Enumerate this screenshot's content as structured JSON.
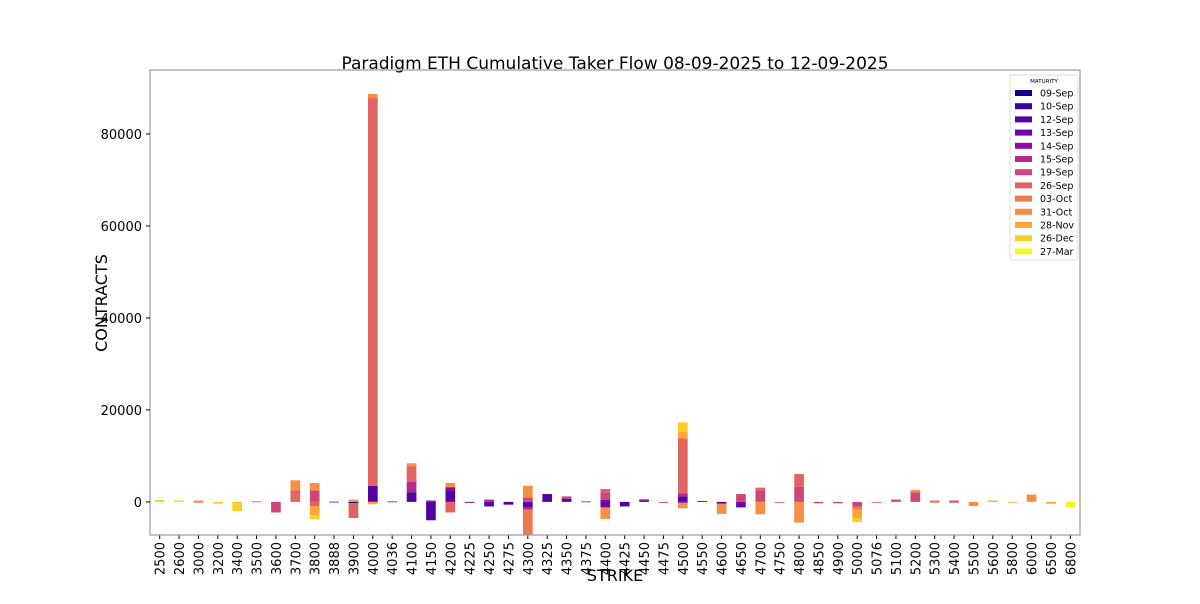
{
  "chart_data": {
    "type": "bar",
    "stacked": true,
    "title": "Paradigm ETH Cumulative Taker Flow 08-09-2025 to 12-09-2025",
    "xlabel": "STRIKE",
    "ylabel": "CONTRACTS",
    "ylim": [
      -7200,
      93900
    ],
    "yticks": [
      0,
      20000,
      40000,
      60000,
      80000
    ],
    "grid": false,
    "legend": {
      "title": "MATURITY",
      "placement": "top-right"
    },
    "series": [
      {
        "name": "09-Sep",
        "color": "#0d0887"
      },
      {
        "name": "10-Sep",
        "color": "#350498"
      },
      {
        "name": "12-Sep",
        "color": "#5402a3"
      },
      {
        "name": "13-Sep",
        "color": "#7000a8"
      },
      {
        "name": "14-Sep",
        "color": "#8b0aa5"
      },
      {
        "name": "15-Sep",
        "color": "#b12a90"
      },
      {
        "name": "19-Sep",
        "color": "#cc4778"
      },
      {
        "name": "26-Sep",
        "color": "#e16462"
      },
      {
        "name": "03-Oct",
        "color": "#ed7953"
      },
      {
        "name": "31-Oct",
        "color": "#f68f44"
      },
      {
        "name": "28-Nov",
        "color": "#fca636"
      },
      {
        "name": "26-Dec",
        "color": "#fcce25"
      },
      {
        "name": "27-Mar",
        "color": "#f0f921"
      }
    ],
    "bars": [
      {
        "strike": "2500",
        "values": {
          "26-Dec": 400
        }
      },
      {
        "strike": "2600",
        "values": {
          "26-Dec": 300
        }
      },
      {
        "strike": "3000",
        "values": {
          "31-Oct": 300,
          "26-Sep": -100
        }
      },
      {
        "strike": "3200",
        "values": {
          "26-Dec": -400
        }
      },
      {
        "strike": "3400",
        "values": {
          "28-Nov": -100,
          "26-Dec": -1900
        }
      },
      {
        "strike": "3500",
        "values": {
          "19-Sep": 100
        }
      },
      {
        "strike": "3600",
        "values": {
          "19-Sep": -2300
        }
      },
      {
        "strike": "3700",
        "values": {
          "26-Sep": 2500,
          "31-Oct": 2200
        }
      },
      {
        "strike": "3800",
        "values": {
          "19-Sep": 2500,
          "31-Oct": 1600,
          "26-Sep": -900,
          "28-Nov": -2000,
          "26-Dec": -900
        }
      },
      {
        "strike": "3888",
        "values": {
          "13-Sep": 50
        }
      },
      {
        "strike": "3900",
        "values": {
          "31-Oct": 500,
          "09-Sep": -300,
          "26-Sep": -3200
        }
      },
      {
        "strike": "4000",
        "values": {
          "12-Sep": 3500,
          "26-Sep": 84300,
          "31-Oct": 900,
          "28-Nov": -500
        }
      },
      {
        "strike": "4036",
        "values": {
          "14-Sep": 100
        }
      },
      {
        "strike": "4100",
        "values": {
          "12-Sep": 2100,
          "15-Sep": 2300,
          "26-Sep": 3300,
          "31-Oct": 700
        }
      },
      {
        "strike": "4150",
        "values": {
          "14-Sep": 300,
          "12-Sep": -4000
        }
      },
      {
        "strike": "4200",
        "values": {
          "12-Sep": 2500,
          "14-Sep": 700,
          "31-Oct": 900,
          "26-Sep": -2300
        }
      },
      {
        "strike": "4225",
        "values": {
          "12-Sep": -200
        }
      },
      {
        "strike": "4250",
        "values": {
          "15-Sep": 500,
          "12-Sep": -1000
        }
      },
      {
        "strike": "4275",
        "values": {
          "12-Sep": -600
        }
      },
      {
        "strike": "4300",
        "values": {
          "19-Sep": 1000,
          "31-Oct": 2500,
          "12-Sep": -1200,
          "15-Sep": -500,
          "03-Oct": -5500
        }
      },
      {
        "strike": "4325",
        "values": {
          "12-Sep": 1700
        }
      },
      {
        "strike": "4350",
        "values": {
          "12-Sep": 700,
          "19-Sep": 500
        }
      },
      {
        "strike": "4375",
        "values": {
          "14-Sep": 100
        }
      },
      {
        "strike": "4400",
        "values": {
          "12-Sep": 400,
          "19-Sep": 1700,
          "26-Sep": 700,
          "13-Sep": -1200,
          "31-Oct": -2500
        }
      },
      {
        "strike": "4425",
        "values": {
          "12-Sep": -1000
        }
      },
      {
        "strike": "4450",
        "values": {
          "12-Sep": 300,
          "19-Sep": 300
        }
      },
      {
        "strike": "4475",
        "values": {
          "19-Sep": -200
        }
      },
      {
        "strike": "4500",
        "values": {
          "12-Sep": 1200,
          "15-Sep": 700,
          "26-Sep": 11900,
          "28-Nov": 1400,
          "26-Dec": 2100,
          "13-Sep": -200,
          "31-Oct": -1200
        }
      },
      {
        "strike": "4550",
        "values": {
          "12-Sep": 200
        }
      },
      {
        "strike": "4600",
        "values": {
          "12-Sep": -400,
          "31-Oct": -2200
        }
      },
      {
        "strike": "4650",
        "values": {
          "19-Sep": 1700,
          "13-Sep": -1200
        }
      },
      {
        "strike": "4700",
        "values": {
          "19-Sep": 2500,
          "26-Sep": 600,
          "31-Oct": -2700
        }
      },
      {
        "strike": "4750",
        "values": {
          "26-Sep": -200
        }
      },
      {
        "strike": "4800",
        "values": {
          "19-Sep": 3300,
          "26-Sep": 2750,
          "31-Oct": -4500
        }
      },
      {
        "strike": "4850",
        "values": {
          "19-Sep": -300
        }
      },
      {
        "strike": "4900",
        "values": {
          "19-Sep": -300
        }
      },
      {
        "strike": "5000",
        "values": {
          "19-Sep": -1000,
          "03-Oct": -700,
          "28-Nov": -1800,
          "26-Dec": -900
        }
      },
      {
        "strike": "5076",
        "values": {
          "19-Sep": -100
        }
      },
      {
        "strike": "5100",
        "values": {
          "19-Sep": 500
        }
      },
      {
        "strike": "5200",
        "values": {
          "19-Sep": 2100,
          "31-Oct": 500
        }
      },
      {
        "strike": "5300",
        "values": {
          "26-Sep": 300,
          "31-Oct": -200
        }
      },
      {
        "strike": "5400",
        "values": {
          "19-Sep": 300,
          "26-Sep": -200
        }
      },
      {
        "strike": "5500",
        "values": {
          "31-Oct": -900
        }
      },
      {
        "strike": "5600",
        "values": {
          "28-Nov": 300
        }
      },
      {
        "strike": "5800",
        "values": {
          "28-Nov": -100
        }
      },
      {
        "strike": "6000",
        "values": {
          "31-Oct": 1600
        }
      },
      {
        "strike": "6500",
        "values": {
          "28-Nov": -400
        }
      },
      {
        "strike": "6800",
        "values": {
          "27-Mar": -1200
        }
      }
    ]
  }
}
